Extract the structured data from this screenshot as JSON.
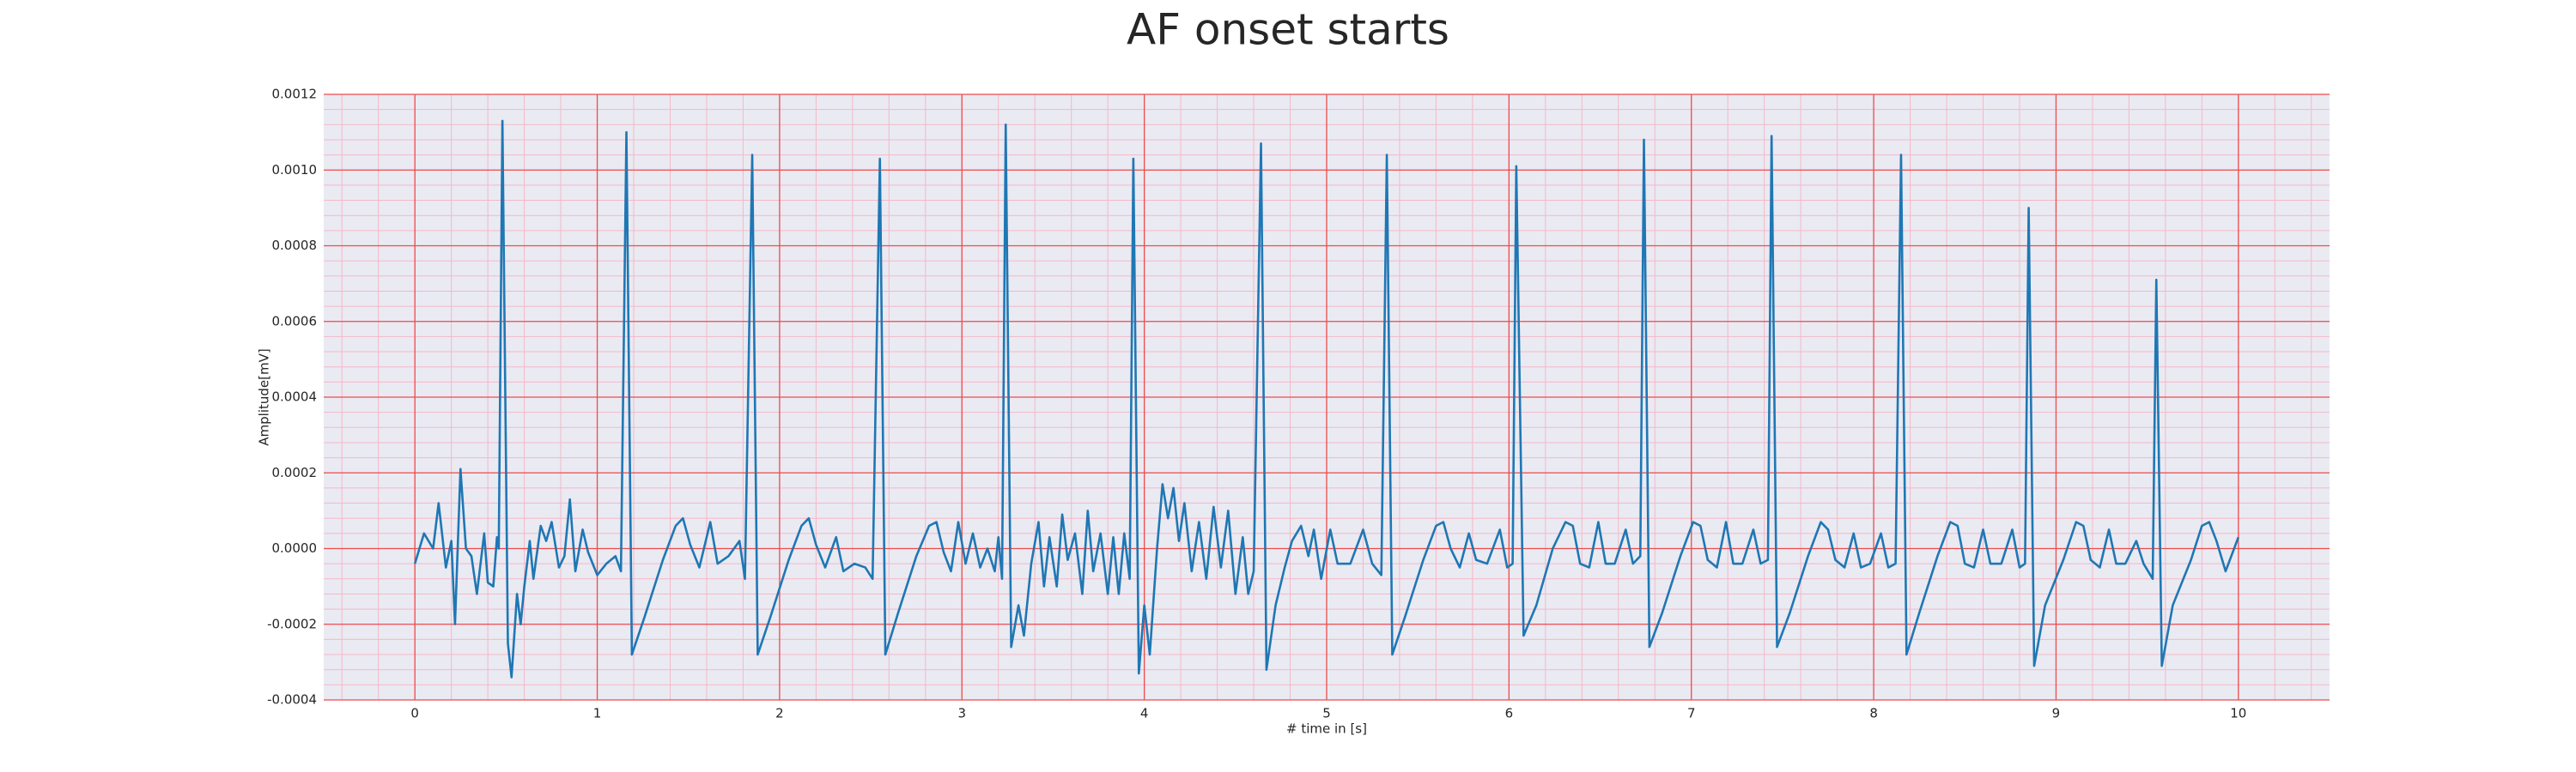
{
  "chart_data": {
    "type": "line",
    "title": "AF onset starts",
    "xlabel": "# time in [s]",
    "ylabel": "Amplitude[mV]",
    "color": "#1f77b4",
    "grid": true,
    "minor_grid": true,
    "xlim": [
      -0.5,
      10.5
    ],
    "ylim": [
      -0.0004,
      0.0012
    ],
    "xticks": [
      0,
      1,
      2,
      3,
      4,
      5,
      6,
      7,
      8,
      9,
      10
    ],
    "yticks": [
      {
        "value": -0.0004,
        "label": "-0.0004"
      },
      {
        "value": -0.0002,
        "label": "-0.0002"
      },
      {
        "value": 0,
        "label": "0.0000"
      },
      {
        "value": 0.0002,
        "label": "0.0002"
      },
      {
        "value": 0.0004,
        "label": "0.0004"
      },
      {
        "value": 0.0006,
        "label": "0.0006"
      },
      {
        "value": 0.0008,
        "label": "0.0008"
      },
      {
        "value": 0.001,
        "label": "0.0010"
      },
      {
        "value": 0.0012,
        "label": "0.0012"
      }
    ],
    "x": [
      0,
      0.05,
      0.1,
      0.13,
      0.17,
      0.2,
      0.22,
      0.25,
      0.28,
      0.31,
      0.34,
      0.38,
      0.4,
      0.43,
      0.45,
      0.46,
      0.48,
      0.51,
      0.53,
      0.56,
      0.58,
      0.6,
      0.63,
      0.65,
      0.69,
      0.72,
      0.75,
      0.79,
      0.82,
      0.85,
      0.88,
      0.92,
      0.95,
      1.0,
      1.05,
      1.1,
      1.13,
      1.16,
      1.19,
      1.26,
      1.36,
      1.43,
      1.47,
      1.51,
      1.56,
      1.62,
      1.66,
      1.72,
      1.78,
      1.81,
      1.85,
      1.88,
      1.95,
      2.05,
      2.12,
      2.16,
      2.2,
      2.25,
      2.31,
      2.35,
      2.41,
      2.47,
      2.51,
      2.55,
      2.58,
      2.65,
      2.75,
      2.82,
      2.86,
      2.9,
      2.94,
      2.98,
      3.02,
      3.06,
      3.1,
      3.14,
      3.18,
      3.2,
      3.22,
      3.24,
      3.27,
      3.31,
      3.34,
      3.38,
      3.42,
      3.45,
      3.48,
      3.52,
      3.55,
      3.58,
      3.62,
      3.66,
      3.69,
      3.72,
      3.76,
      3.8,
      3.83,
      3.86,
      3.89,
      3.92,
      3.94,
      3.97,
      4.0,
      4.03,
      4.07,
      4.1,
      4.13,
      4.16,
      4.19,
      4.22,
      4.26,
      4.3,
      4.34,
      4.38,
      4.42,
      4.46,
      4.5,
      4.54,
      4.57,
      4.6,
      4.64,
      4.67,
      4.72,
      4.77,
      4.81,
      4.86,
      4.9,
      4.93,
      4.97,
      5.02,
      5.06,
      5.13,
      5.2,
      5.25,
      5.3,
      5.33,
      5.36,
      5.43,
      5.53,
      5.6,
      5.64,
      5.68,
      5.73,
      5.78,
      5.82,
      5.88,
      5.95,
      5.99,
      6.02,
      6.04,
      6.08,
      6.15,
      6.24,
      6.31,
      6.35,
      6.39,
      6.44,
      6.49,
      6.53,
      6.58,
      6.64,
      6.68,
      6.72,
      6.74,
      6.77,
      6.84,
      6.94,
      7.01,
      7.05,
      7.09,
      7.14,
      7.19,
      7.23,
      7.28,
      7.34,
      7.38,
      7.42,
      7.44,
      7.47,
      7.54,
      7.64,
      7.71,
      7.75,
      7.79,
      7.84,
      7.89,
      7.93,
      7.98,
      8.04,
      8.08,
      8.12,
      8.15,
      8.18,
      8.25,
      8.35,
      8.42,
      8.46,
      8.5,
      8.55,
      8.6,
      8.64,
      8.7,
      8.76,
      8.8,
      8.83,
      8.85,
      8.88,
      8.94,
      9.04,
      9.11,
      9.15,
      9.19,
      9.24,
      9.29,
      9.33,
      9.38,
      9.44,
      9.48,
      9.53,
      9.55,
      9.58,
      9.64,
      9.74,
      9.8,
      9.84,
      9.88,
      9.93,
      10.0
    ],
    "values": [
      -4e-05,
      4e-05,
      0.0,
      0.00012,
      -5e-05,
      2e-05,
      -0.0002,
      0.00021,
      0.0,
      -2e-05,
      -0.00012,
      4e-05,
      -9e-05,
      -0.0001,
      3e-05,
      0.0,
      0.00113,
      -0.00025,
      -0.00034,
      -0.00012,
      -0.0002,
      -0.0001,
      2e-05,
      -8e-05,
      6e-05,
      2e-05,
      7e-05,
      -5e-05,
      -2e-05,
      0.00013,
      -6e-05,
      5e-05,
      -1e-05,
      -7e-05,
      -4e-05,
      -2e-05,
      -6e-05,
      0.0011,
      -0.00028,
      -0.00018,
      -3e-05,
      6e-05,
      8e-05,
      1e-05,
      -5e-05,
      7e-05,
      -4e-05,
      -2e-05,
      2e-05,
      -8e-05,
      0.00104,
      -0.00028,
      -0.00018,
      -3e-05,
      6e-05,
      8e-05,
      1e-05,
      -5e-05,
      3e-05,
      -6e-05,
      -4e-05,
      -5e-05,
      -8e-05,
      0.00103,
      -0.00028,
      -0.00017,
      -2e-05,
      6e-05,
      7e-05,
      -1e-05,
      -6e-05,
      7e-05,
      -4e-05,
      4e-05,
      -5e-05,
      0.0,
      -6e-05,
      3e-05,
      -8e-05,
      0.00112,
      -0.00026,
      -0.00015,
      -0.00023,
      -4e-05,
      7e-05,
      -0.0001,
      3e-05,
      -0.0001,
      9e-05,
      -3e-05,
      4e-05,
      -0.00012,
      0.0001,
      -6e-05,
      4e-05,
      -0.00012,
      3e-05,
      -0.00012,
      4e-05,
      -8e-05,
      0.00103,
      -0.00033,
      -0.00015,
      -0.00028,
      0.0,
      0.00017,
      8e-05,
      0.00016,
      2e-05,
      0.00012,
      -6e-05,
      7e-05,
      -8e-05,
      0.00011,
      -5e-05,
      0.0001,
      -0.00012,
      3e-05,
      -0.00012,
      -6e-05,
      0.00107,
      -0.00032,
      -0.00015,
      -5e-05,
      2e-05,
      6e-05,
      -2e-05,
      5e-05,
      -8e-05,
      5e-05,
      -4e-05,
      -4e-05,
      5e-05,
      -4e-05,
      -7e-05,
      0.00104,
      -0.00028,
      -0.00018,
      -3e-05,
      6e-05,
      7e-05,
      0.0,
      -5e-05,
      4e-05,
      -3e-05,
      -4e-05,
      5e-05,
      -5e-05,
      -4e-05,
      0.00101,
      -0.00023,
      -0.00015,
      0.0,
      7e-05,
      6e-05,
      -4e-05,
      -5e-05,
      7e-05,
      -4e-05,
      -4e-05,
      5e-05,
      -4e-05,
      -2e-05,
      0.00108,
      -0.00026,
      -0.00017,
      -2e-05,
      7e-05,
      6e-05,
      -3e-05,
      -5e-05,
      7e-05,
      -4e-05,
      -4e-05,
      5e-05,
      -4e-05,
      -3e-05,
      0.00109,
      -0.00026,
      -0.00017,
      -2e-05,
      7e-05,
      5e-05,
      -3e-05,
      -5e-05,
      4e-05,
      -5e-05,
      -4e-05,
      4e-05,
      -5e-05,
      -4e-05,
      0.00104,
      -0.00028,
      -0.00017,
      -2e-05,
      7e-05,
      6e-05,
      -4e-05,
      -5e-05,
      5e-05,
      -4e-05,
      -4e-05,
      5e-05,
      -5e-05,
      -4e-05,
      0.0009,
      -0.00031,
      -0.00015,
      -3e-05,
      7e-05,
      6e-05,
      -3e-05,
      -5e-05,
      5e-05,
      -4e-05,
      -4e-05,
      2e-05,
      -4e-05,
      -8e-05,
      0.00071,
      -0.00031,
      -0.00015,
      -3e-05,
      6e-05,
      7e-05,
      2e-05,
      -6e-05,
      3e-05
    ]
  }
}
